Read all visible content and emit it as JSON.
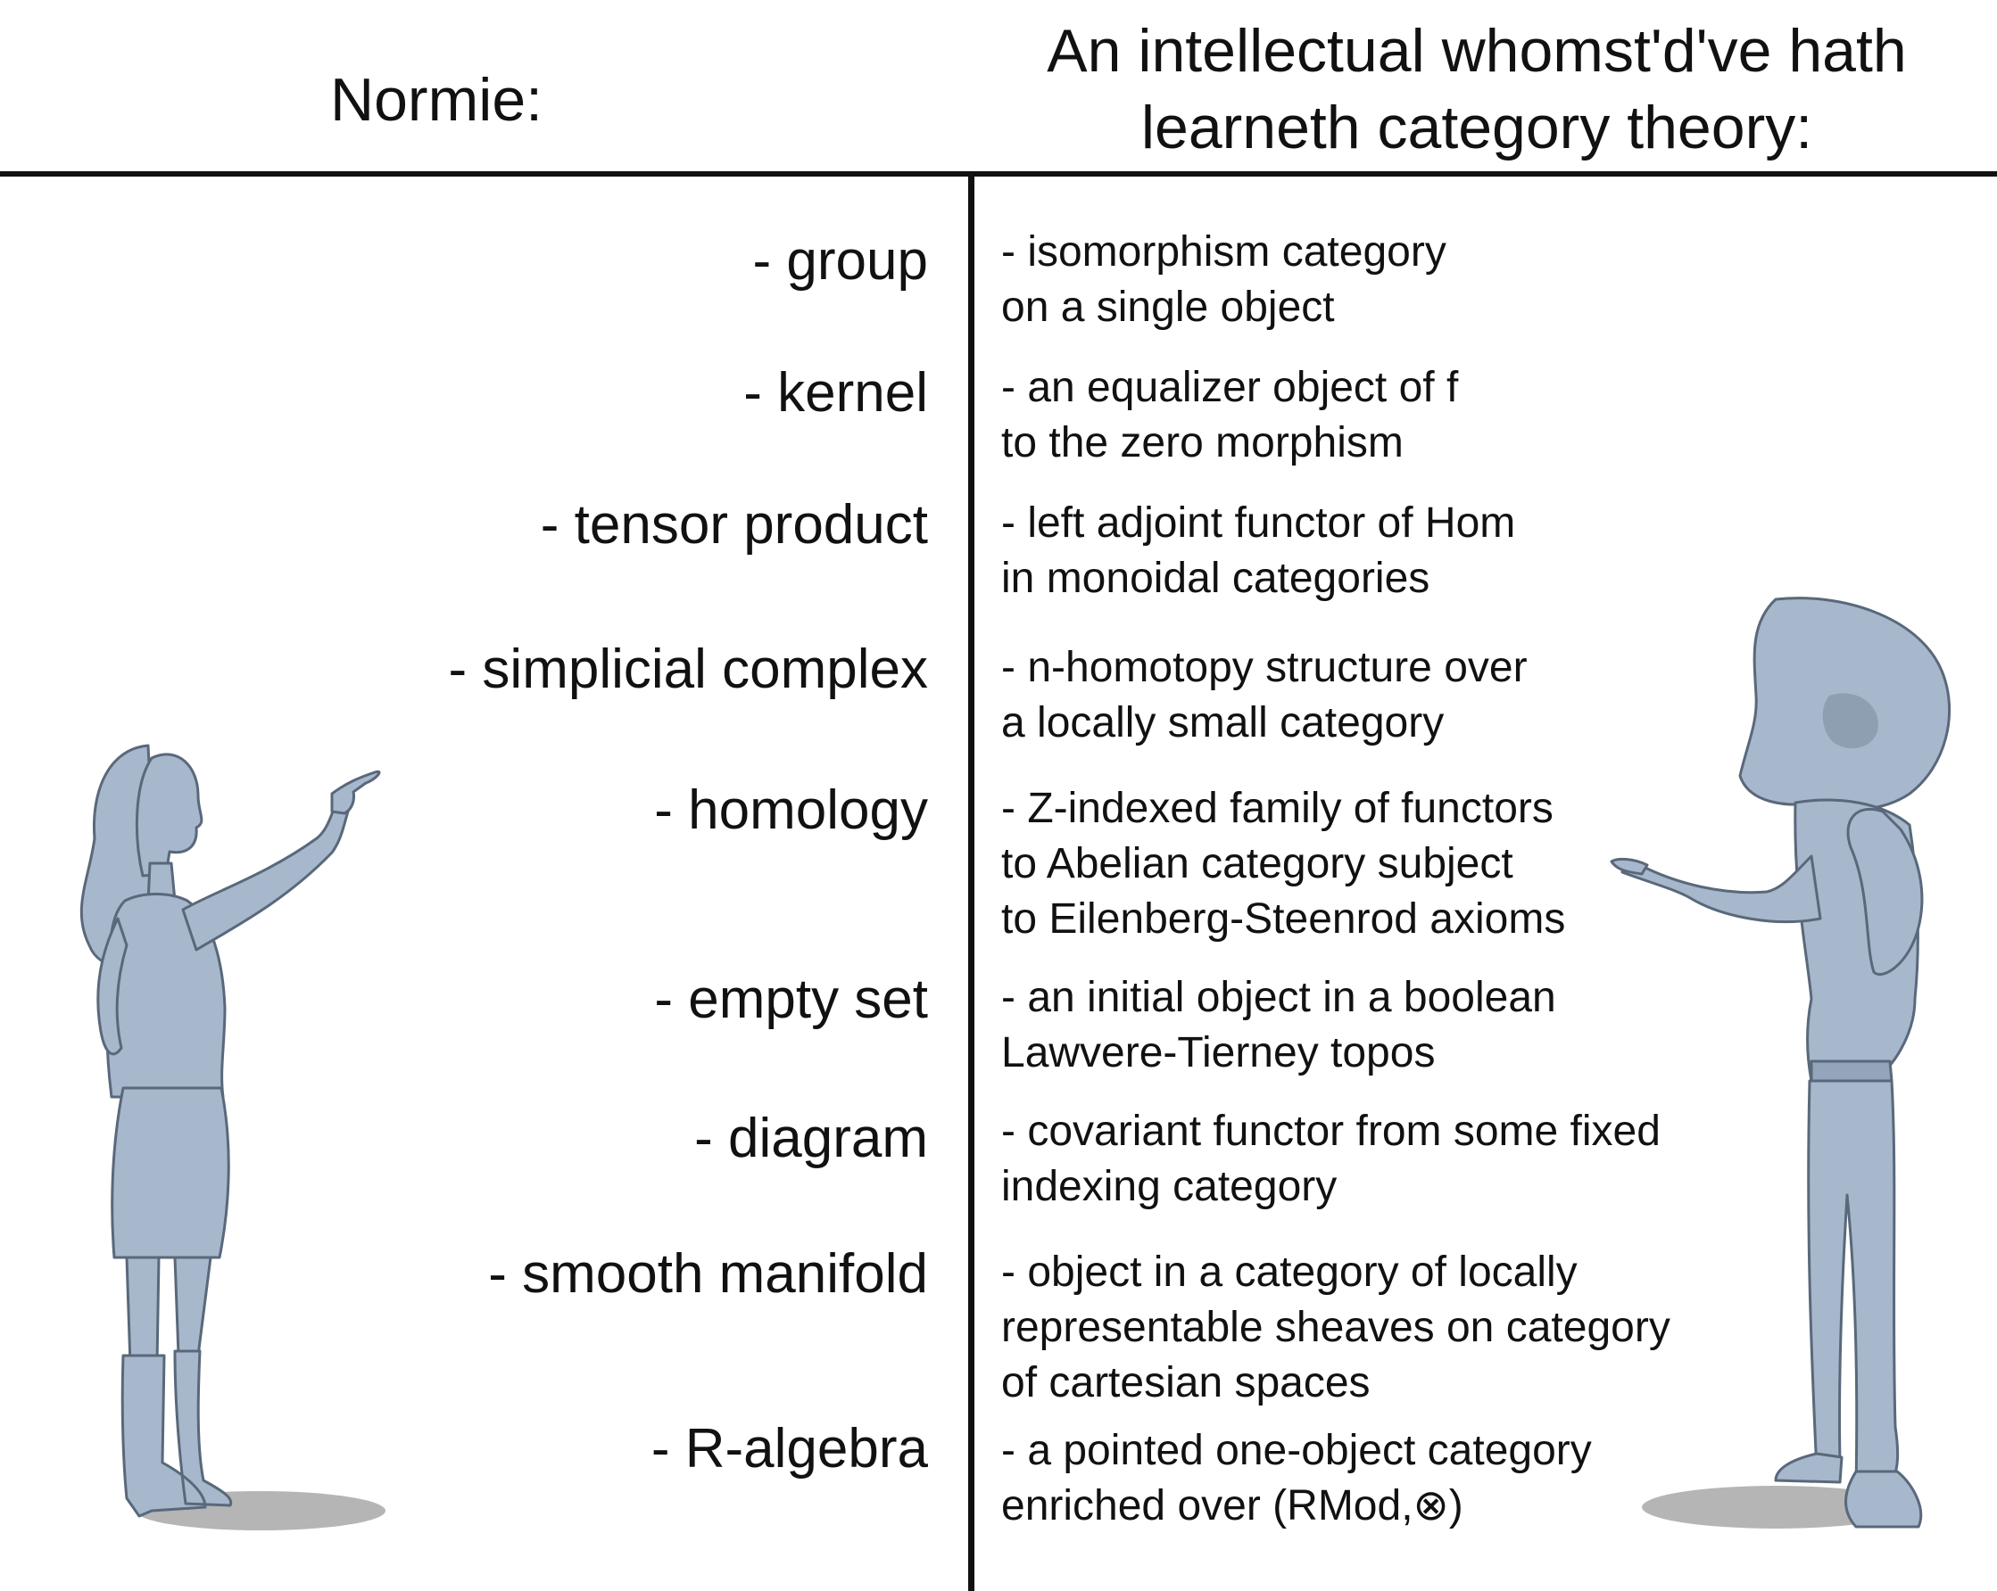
{
  "header": {
    "left_label": "Normie:",
    "right_line_1": "An intellectual whomst'd've hath",
    "right_line_2": "learneth category theory:"
  },
  "colors": {
    "figure_fill": "#a7b8cc",
    "figure_outline": "#59687a",
    "shadow": "#8e8e8e",
    "rule": "#111111"
  },
  "rows": [
    {
      "term": "- group",
      "definition": [
        "- isomorphism category",
        "on a single object"
      ]
    },
    {
      "term": "- kernel",
      "definition": [
        "- an equalizer object of f",
        "to the zero morphism"
      ]
    },
    {
      "term": "- tensor product",
      "definition": [
        "- left adjoint functor of Hom",
        "in monoidal categories"
      ]
    },
    {
      "term": "- simplicial complex",
      "definition": [
        "- n-homotopy structure over",
        "a locally small category"
      ]
    },
    {
      "term": "- homology",
      "definition": [
        "- Z-indexed family of functors",
        "to Abelian category subject",
        "to Eilenberg-Steenrod axioms"
      ]
    },
    {
      "term": "- empty set",
      "definition": [
        "- an initial object in a boolean",
        "Lawvere-Tierney topos"
      ]
    },
    {
      "term": "- diagram",
      "definition": [
        "- covariant functor from some fixed",
        "indexing category"
      ]
    },
    {
      "term": "- smooth manifold",
      "definition": [
        "- object in a category of locally",
        "representable sheaves on category",
        "of cartesian spaces"
      ]
    },
    {
      "term": "- R-algebra",
      "definition": [
        "- a pointed one-object category",
        "enriched over (RMod,⊗)"
      ]
    }
  ]
}
